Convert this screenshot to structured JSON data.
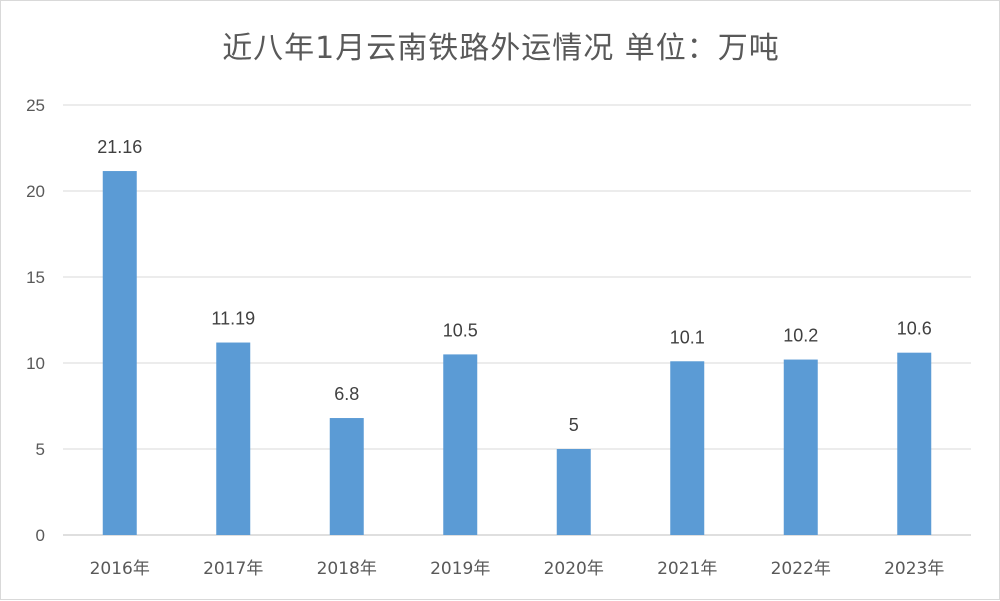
{
  "chart_data": {
    "type": "bar",
    "title": "近八年1月云南铁路外运情况 单位：万吨",
    "categories": [
      "2016年",
      "2017年",
      "2018年",
      "2019年",
      "2020年",
      "2021年",
      "2022年",
      "2023年"
    ],
    "values": [
      21.16,
      11.19,
      6.8,
      10.5,
      5,
      10.1,
      10.2,
      10.6
    ],
    "data_labels": [
      "21.16",
      "11.19",
      "6.8",
      "10.5",
      "5",
      "10.1",
      "10.2",
      "10.6"
    ],
    "y_ticks": [
      "0",
      "5",
      "10",
      "15",
      "20",
      "25"
    ],
    "ylim": [
      0,
      25
    ],
    "grid": true,
    "legend": "none",
    "bar_color": "#5B9BD5",
    "grid_color": "#d9d9d9",
    "axis_color": "#bfbfbf"
  }
}
